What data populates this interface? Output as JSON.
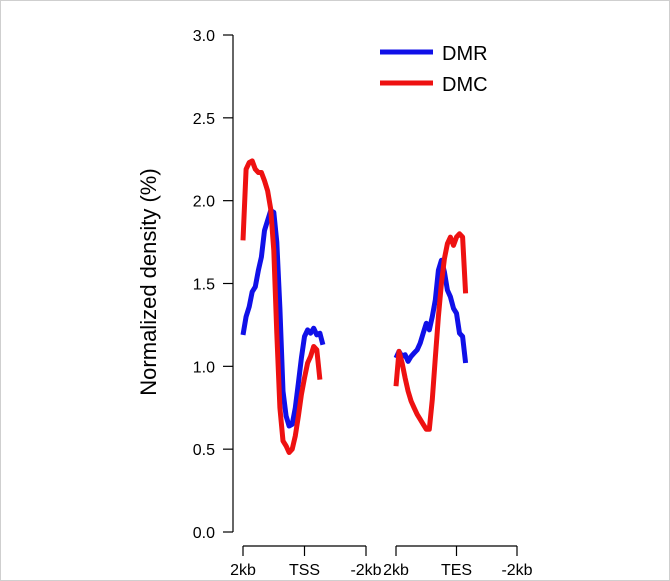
{
  "chart_data": {
    "type": "line",
    "title": "",
    "ylabel": "Normalized density (%)",
    "ylim": [
      0,
      3
    ],
    "yticks": [
      "0.0",
      "0.5",
      "1.0",
      "1.5",
      "2.0",
      "2.5",
      "3.0"
    ],
    "ytick_values": [
      0,
      0.5,
      1.0,
      1.5,
      2.0,
      2.5,
      3.0
    ],
    "grid": false,
    "legend_position": "top-right",
    "panels": [
      {
        "xticks": [
          "2kb",
          "TSS",
          "-2kb"
        ],
        "xtick_values": [
          0,
          20,
          40
        ],
        "xlim": [
          0,
          40
        ]
      },
      {
        "xticks": [
          "2kb",
          "TES",
          "-2kb"
        ],
        "xtick_values": [
          0,
          20,
          40
        ],
        "xlim": [
          0,
          40
        ]
      }
    ],
    "series": [
      {
        "name": "DMR",
        "color": "#1010e8",
        "panel_values": [
          [
            [
              0,
              1.19
            ],
            [
              1,
              1.3
            ],
            [
              2,
              1.36
            ],
            [
              3,
              1.45
            ],
            [
              4,
              1.48
            ],
            [
              5,
              1.58
            ],
            [
              6,
              1.66
            ],
            [
              7,
              1.82
            ],
            [
              8,
              1.88
            ],
            [
              9,
              1.94
            ],
            [
              10,
              1.93
            ],
            [
              11,
              1.75
            ],
            [
              12,
              1.35
            ],
            [
              13,
              0.85
            ],
            [
              14,
              0.7
            ],
            [
              15,
              0.64
            ],
            [
              16,
              0.65
            ],
            [
              17,
              0.75
            ],
            [
              18,
              0.9
            ],
            [
              19,
              1.05
            ],
            [
              20,
              1.18
            ],
            [
              21,
              1.22
            ],
            [
              22,
              1.2
            ],
            [
              23,
              1.23
            ],
            [
              24,
              1.19
            ],
            [
              25,
              1.2
            ],
            [
              26,
              1.13
            ]
          ],
          [
            [
              0,
              1.05
            ],
            [
              1,
              1.09
            ],
            [
              2,
              1.06
            ],
            [
              3,
              1.07
            ],
            [
              4,
              1.03
            ],
            [
              5,
              1.06
            ],
            [
              6,
              1.08
            ],
            [
              7,
              1.1
            ],
            [
              8,
              1.14
            ],
            [
              9,
              1.2
            ],
            [
              10,
              1.26
            ],
            [
              11,
              1.22
            ],
            [
              12,
              1.3
            ],
            [
              13,
              1.4
            ],
            [
              14,
              1.58
            ],
            [
              15,
              1.64
            ],
            [
              16,
              1.57
            ],
            [
              17,
              1.46
            ],
            [
              18,
              1.42
            ],
            [
              19,
              1.35
            ],
            [
              20,
              1.32
            ],
            [
              21,
              1.2
            ],
            [
              22,
              1.18
            ],
            [
              23,
              1.02
            ]
          ]
        ]
      },
      {
        "name": "DMC",
        "color": "#ee1111",
        "panel_values": [
          [
            [
              0,
              1.76
            ],
            [
              1,
              2.19
            ],
            [
              2,
              2.23
            ],
            [
              3,
              2.24
            ],
            [
              4,
              2.19
            ],
            [
              5,
              2.17
            ],
            [
              6,
              2.17
            ],
            [
              7,
              2.12
            ],
            [
              8,
              2.06
            ],
            [
              9,
              1.95
            ],
            [
              10,
              1.7
            ],
            [
              11,
              1.2
            ],
            [
              12,
              0.75
            ],
            [
              13,
              0.55
            ],
            [
              14,
              0.52
            ],
            [
              15,
              0.48
            ],
            [
              16,
              0.5
            ],
            [
              17,
              0.58
            ],
            [
              18,
              0.7
            ],
            [
              19,
              0.83
            ],
            [
              20,
              0.93
            ],
            [
              21,
              1.02
            ],
            [
              22,
              1.06
            ],
            [
              23,
              1.12
            ],
            [
              24,
              1.1
            ],
            [
              25,
              0.92
            ]
          ],
          [
            [
              0,
              0.88
            ],
            [
              1,
              1.09
            ],
            [
              2,
              1.02
            ],
            [
              3,
              0.93
            ],
            [
              4,
              0.85
            ],
            [
              5,
              0.79
            ],
            [
              6,
              0.75
            ],
            [
              7,
              0.71
            ],
            [
              8,
              0.68
            ],
            [
              9,
              0.65
            ],
            [
              10,
              0.62
            ],
            [
              11,
              0.62
            ],
            [
              12,
              0.8
            ],
            [
              13,
              1.05
            ],
            [
              14,
              1.3
            ],
            [
              15,
              1.5
            ],
            [
              16,
              1.65
            ],
            [
              17,
              1.74
            ],
            [
              18,
              1.78
            ],
            [
              19,
              1.73
            ],
            [
              20,
              1.78
            ],
            [
              21,
              1.8
            ],
            [
              22,
              1.78
            ],
            [
              23,
              1.44
            ]
          ]
        ]
      }
    ]
  }
}
